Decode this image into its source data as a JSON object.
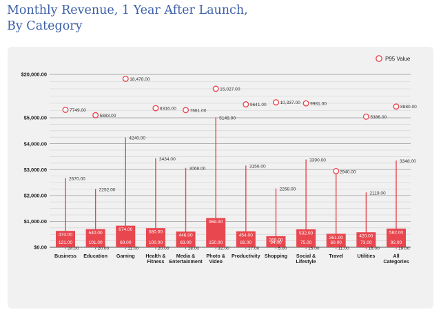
{
  "title_line1": "Monthly Revenue, 1 Year After Launch,",
  "title_line2": "By Category",
  "colors": {
    "accent": "#e8474f",
    "title": "#3b5fa8",
    "panel": "#f1f1f1",
    "grid": "#a9a9a9"
  },
  "chart_data": {
    "type": "bar",
    "title": "Monthly Revenue, 1 Year After Launch, By Category",
    "legend": {
      "label": "P95 Value",
      "placement": "top-right"
    },
    "y_ticks": [
      "$0.00",
      "$1,000.00",
      "$2,000.00",
      "$3,000.00",
      "$4,000.00",
      "$5,000.00",
      "$20,000.00"
    ],
    "y_tick_values": [
      0,
      1000,
      2000,
      3000,
      4000,
      5000,
      20000
    ],
    "y_scale": "piecewise linear, compressed above 5000",
    "categories": [
      "Business",
      "Education",
      "Gaming",
      "Health & Fitness",
      "Media & Entertainment",
      "Photo & Video",
      "Productivity",
      "Shopping",
      "Social & Lifestyle",
      "Travel",
      "Utilities",
      "All Categories"
    ],
    "category_lines": [
      [
        "Business"
      ],
      [
        "Education"
      ],
      [
        "Gaming"
      ],
      [
        "Health &",
        "Fitness"
      ],
      [
        "Media &",
        "Entertainment"
      ],
      [
        "Photo &",
        "Video"
      ],
      [
        "Productivity"
      ],
      [
        "Shopping"
      ],
      [
        "Social &",
        "Lifestyle"
      ],
      [
        "Travel"
      ],
      [
        "Utilities"
      ],
      [
        "All",
        "Categories"
      ]
    ],
    "p95": [
      7749,
      5883,
      18478,
      8316,
      7661,
      15027,
      9641,
      10337,
      9981,
      null,
      5386,
      8880
    ],
    "p95_labels": [
      "7749.00",
      "5883.00",
      "18,478.00",
      "8316.00",
      "7661.00",
      "15,027.00",
      "9641.00",
      "10,337.00",
      "9981.00",
      "",
      "5386.00",
      "8880.00"
    ],
    "p90": [
      2670,
      2252,
      4240,
      3434,
      3068,
      5146,
      3156,
      2268,
      3390,
      2940,
      2119,
      3348
    ],
    "p90_labels": [
      "2670.00",
      "2252.00",
      "4240.00",
      "3434.00",
      "3068.00",
      "5146.00",
      "3156.00",
      "2268.00",
      "3390.00",
      "2940.00",
      "2119.00",
      "3348.00"
    ],
    "p90_marker": [
      false,
      false,
      false,
      false,
      false,
      false,
      false,
      false,
      false,
      true,
      false,
      false
    ],
    "p75": [
      474,
      540,
      674,
      580,
      446,
      969,
      454,
      269,
      532,
      361,
      420,
      562
    ],
    "p75_labels": [
      "474.00",
      "540.00",
      "674.00",
      "580.00",
      "446.00",
      "969.00",
      "454.00",
      "269.00",
      "532.00",
      "361.00",
      "420.00",
      "562.00"
    ],
    "median": [
      121,
      101,
      69,
      100,
      83,
      150,
      82,
      34,
      75,
      60,
      73,
      92
    ],
    "median_labels": [
      "121.00",
      "101.00",
      "69.00",
      "100.00",
      "83.00",
      "150.00",
      "82.00",
      "34.00",
      "75.00",
      "60.00",
      "73.00",
      "92.00"
    ],
    "p25": [
      24,
      20,
      11,
      20,
      18,
      32,
      17,
      5,
      15,
      11,
      16,
      19
    ],
    "p25_labels": [
      "24.00",
      "20.00",
      "11.00",
      "20.00",
      "18.00",
      "32.00",
      "17.00",
      "5.00",
      "15.00",
      "11.00",
      "16.00",
      "19.00"
    ]
  }
}
